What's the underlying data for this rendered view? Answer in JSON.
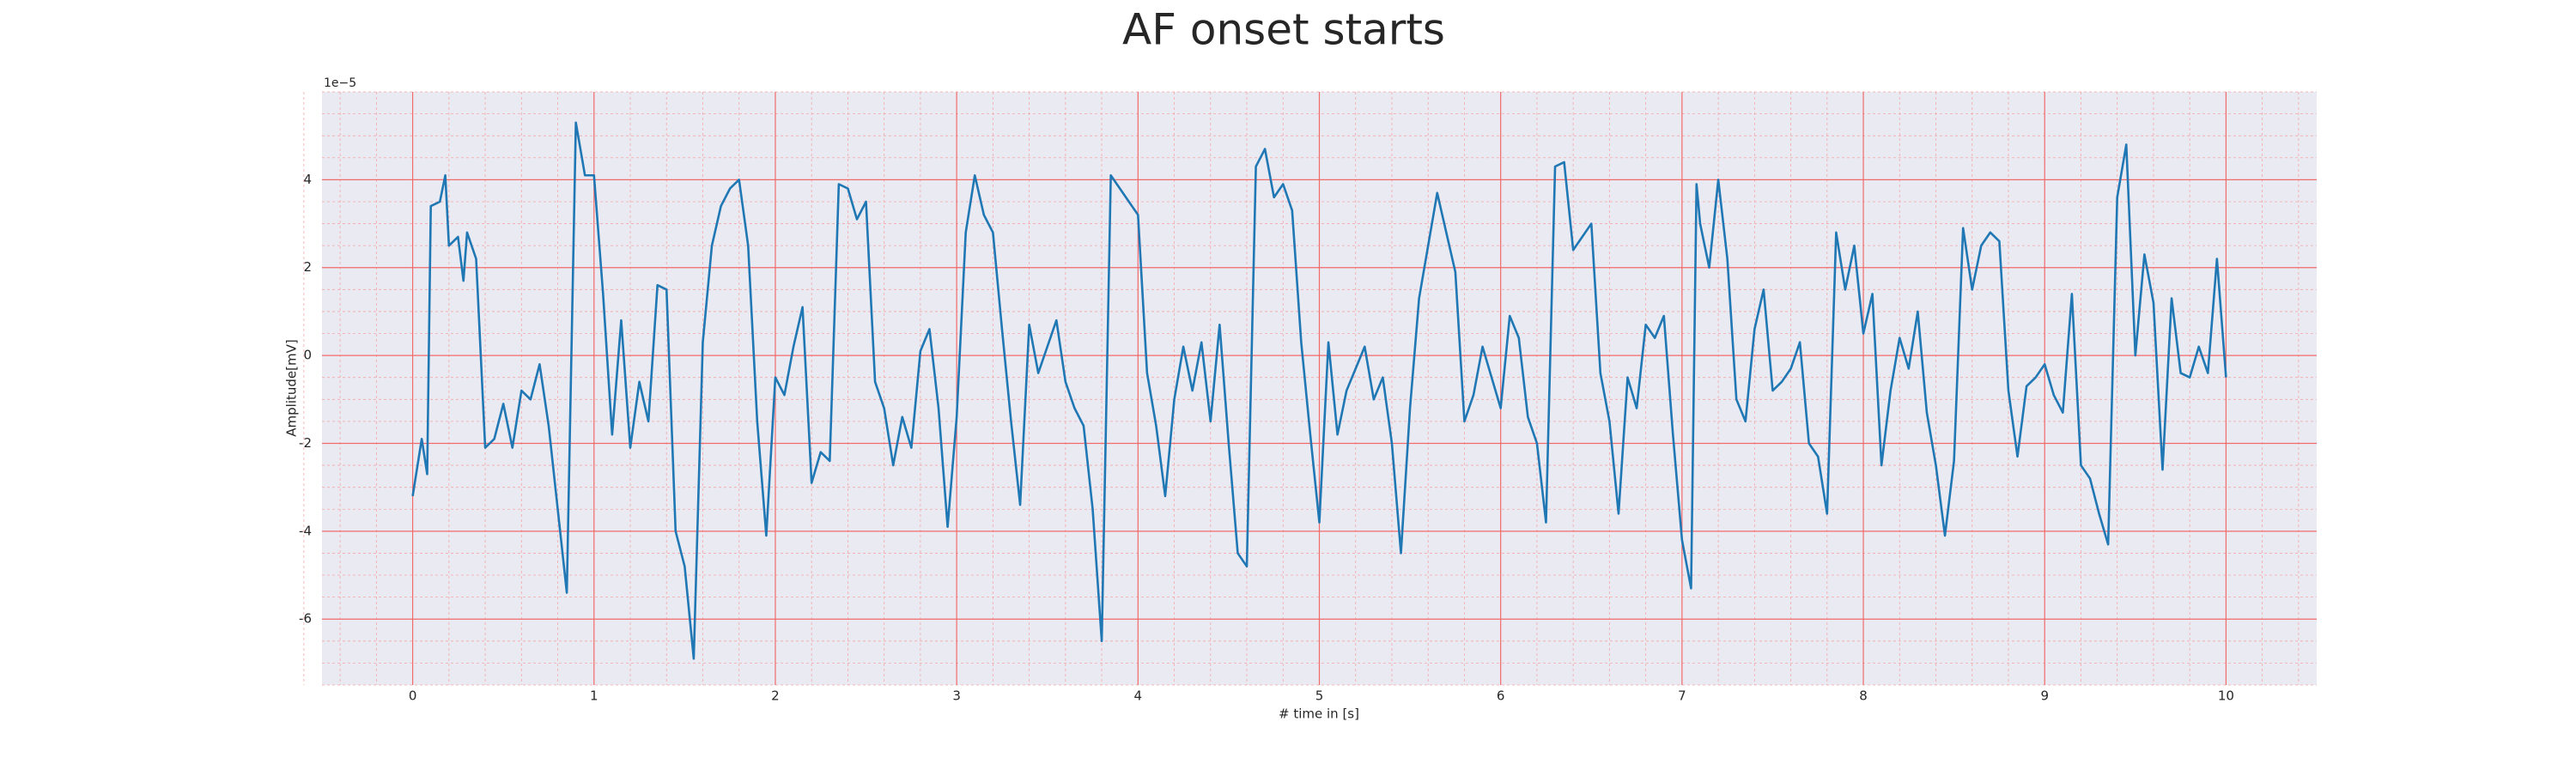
{
  "chart_data": {
    "type": "line",
    "title": "AF onset starts",
    "xlabel": "# time in [s]",
    "ylabel": "Amplitude[mV]",
    "offset_text": "1e−5",
    "xlim": [
      -0.5,
      10.5
    ],
    "ylim": [
      -7.5,
      6
    ],
    "xticks": [
      0,
      1,
      2,
      3,
      4,
      5,
      6,
      7,
      8,
      9,
      10
    ],
    "yticks": [
      -6,
      -4,
      -2,
      0,
      2,
      4
    ],
    "grid": true,
    "minor_grid": true,
    "series": [
      {
        "color": "#1f77b4",
        "x": [
          0,
          0.05,
          0.08,
          0.1,
          0.15,
          0.18,
          0.2,
          0.25,
          0.28,
          0.3,
          0.35,
          0.4,
          0.45,
          0.5,
          0.55,
          0.6,
          0.65,
          0.7,
          0.75,
          0.8,
          0.85,
          0.9,
          0.95,
          1.0,
          1.05,
          1.1,
          1.15,
          1.2,
          1.25,
          1.3,
          1.35,
          1.4,
          1.45,
          1.5,
          1.55,
          1.6,
          1.65,
          1.7,
          1.75,
          1.8,
          1.85,
          1.9,
          1.95,
          2.0,
          2.05,
          2.1,
          2.15,
          2.2,
          2.25,
          2.3,
          2.35,
          2.4,
          2.45,
          2.5,
          2.55,
          2.6,
          2.65,
          2.7,
          2.75,
          2.8,
          2.85,
          2.9,
          2.95,
          3.0,
          3.05,
          3.1,
          3.15,
          3.2,
          3.25,
          3.3,
          3.35,
          3.4,
          3.45,
          3.5,
          3.55,
          3.6,
          3.65,
          3.7,
          3.75,
          3.8,
          3.85,
          3.9,
          3.95,
          4.0,
          4.05,
          4.1,
          4.15,
          4.2,
          4.25,
          4.3,
          4.35,
          4.4,
          4.45,
          4.5,
          4.55,
          4.6,
          4.65,
          4.7,
          4.75,
          4.8,
          4.85,
          4.9,
          4.95,
          5.0,
          5.05,
          5.1,
          5.15,
          5.2,
          5.25,
          5.3,
          5.35,
          5.4,
          5.45,
          5.5,
          5.55,
          5.6,
          5.65,
          5.7,
          5.75,
          5.8,
          5.85,
          5.9,
          5.95,
          6.0,
          6.05,
          6.1,
          6.15,
          6.2,
          6.25,
          6.3,
          6.35,
          6.4,
          6.45,
          6.5,
          6.55,
          6.6,
          6.65,
          6.7,
          6.75,
          6.8,
          6.85,
          6.9,
          6.95,
          7.0,
          7.05,
          7.08,
          7.1,
          7.15,
          7.2,
          7.25,
          7.3,
          7.35,
          7.4,
          7.45,
          7.5,
          7.55,
          7.6,
          7.65,
          7.7,
          7.75,
          7.8,
          7.85,
          7.9,
          7.95,
          8.0,
          8.05,
          8.1,
          8.15,
          8.2,
          8.25,
          8.3,
          8.35,
          8.4,
          8.45,
          8.5,
          8.55,
          8.6,
          8.65,
          8.7,
          8.75,
          8.8,
          8.85,
          8.9,
          8.95,
          9.0,
          9.05,
          9.1,
          9.15,
          9.2,
          9.25,
          9.3,
          9.35,
          9.4,
          9.45,
          9.5,
          9.55,
          9.6,
          9.65,
          9.7,
          9.75,
          9.8,
          9.85,
          9.9,
          9.95,
          10.0
        ],
        "values": [
          -3.2,
          -1.9,
          -2.7,
          3.4,
          3.5,
          4.1,
          2.5,
          2.7,
          1.7,
          2.8,
          2.2,
          -2.1,
          -1.9,
          -1.1,
          -2.1,
          -0.8,
          -1.0,
          -0.2,
          -1.6,
          -3.5,
          -5.4,
          5.3,
          4.1,
          4.1,
          1.4,
          -1.8,
          0.8,
          -2.1,
          -0.6,
          -1.5,
          1.6,
          1.5,
          -4.0,
          -4.8,
          -6.9,
          0.3,
          2.5,
          3.4,
          3.8,
          4.0,
          2.5,
          -1.5,
          -4.1,
          -0.5,
          -0.9,
          0.2,
          1.1,
          -2.9,
          -2.2,
          -2.4,
          3.9,
          3.8,
          3.1,
          3.5,
          -0.6,
          -1.2,
          -2.5,
          -1.4,
          -2.1,
          0.1,
          0.6,
          -1.2,
          -3.9,
          -1.4,
          2.8,
          4.1,
          3.2,
          2.8,
          0.6,
          -1.5,
          -3.4,
          0.7,
          -0.4,
          0.2,
          0.8,
          -0.6,
          -1.2,
          -1.6,
          -3.5,
          -6.5,
          4.1,
          3.8,
          3.5,
          3.2,
          -0.4,
          -1.6,
          -3.2,
          -1.0,
          0.2,
          -0.8,
          0.3,
          -1.5,
          0.7,
          -2.0,
          -4.5,
          -4.8,
          4.3,
          4.7,
          3.6,
          3.9,
          3.3,
          0.3,
          -1.8,
          -3.8,
          0.3,
          -1.8,
          -0.8,
          -0.3,
          0.2,
          -1.0,
          -0.5,
          -2.0,
          -4.5,
          -1.2,
          1.3,
          2.5,
          3.7,
          2.8,
          1.9,
          -1.5,
          -0.9,
          0.2,
          -0.5,
          -1.2,
          0.9,
          0.4,
          -1.4,
          -2.0,
          -3.8,
          4.3,
          4.4,
          2.4,
          2.7,
          3.0,
          -0.4,
          -1.5,
          -3.6,
          -0.5,
          -1.2,
          0.7,
          0.4,
          0.9,
          -1.8,
          -4.2,
          -5.3,
          3.9,
          3.0,
          2.0,
          4.0,
          2.2,
          -1.0,
          -1.5,
          0.6,
          1.5,
          -0.8,
          -0.6,
          -0.3,
          0.3,
          -2.0,
          -2.3,
          -3.6,
          2.8,
          1.5,
          2.5,
          0.5,
          1.4,
          -2.5,
          -0.8,
          0.4,
          -0.3,
          1.0,
          -1.3,
          -2.5,
          -4.1,
          -2.4,
          2.9,
          1.5,
          2.5,
          2.8,
          2.6,
          -0.8,
          -2.3,
          -0.7,
          -0.5,
          -0.2,
          -0.9,
          -1.3,
          1.4,
          -2.5,
          -2.8,
          -3.6,
          -4.3,
          3.6,
          4.8,
          0.0,
          2.3,
          1.2,
          -2.6,
          1.3,
          -0.4,
          -0.5,
          0.2,
          -0.4,
          2.2,
          -0.5
        ]
      }
    ]
  }
}
